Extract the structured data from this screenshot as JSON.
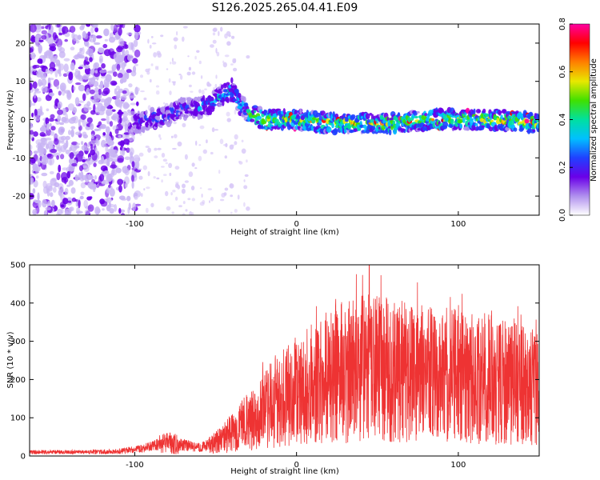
{
  "title": "S126.2025.265.04.41.E09",
  "chart_data": [
    {
      "type": "heatmap",
      "xlabel": "Height of straight line (km)",
      "ylabel": "Frequency (Hz)",
      "xlim": [
        -165,
        150
      ],
      "ylim": [
        -25,
        25
      ],
      "xticks": [
        -100,
        0,
        100
      ],
      "yticks": [
        -20,
        -10,
        0,
        10,
        20
      ],
      "colorbar": {
        "label": "Normalized spectral amplitude",
        "range": [
          0,
          0.8
        ],
        "ticks": [
          "0.0",
          "0.2",
          "0.4",
          "0.6",
          "0.8"
        ],
        "colors": [
          "#ffffff",
          "#b090ee",
          "#6a00e8",
          "#2040ff",
          "#00c0ff",
          "#00e0a0",
          "#40e000",
          "#e8e800",
          "#ff8000",
          "#ff0000",
          "#ff00a0"
        ]
      },
      "ridge_center_hz": {
        "x": [
          -100,
          -80,
          -70,
          -60,
          -50,
          -40,
          -35,
          -30,
          -20,
          -10,
          0,
          20,
          40,
          60,
          80,
          100,
          120,
          150
        ],
        "freq": [
          -1,
          1,
          3,
          3,
          5,
          8,
          4,
          2,
          0,
          0,
          0,
          -1,
          -1,
          -1,
          0,
          0,
          0,
          -1
        ]
      }
    },
    {
      "type": "line",
      "xlabel": "Height of straight line (km)",
      "ylabel": "SNR (10 * v/v)",
      "xlim": [
        -165,
        150
      ],
      "ylim": [
        0,
        500
      ],
      "xticks": [
        -100,
        0,
        100
      ],
      "yticks": [
        0,
        100,
        200,
        300,
        400,
        500
      ],
      "color": "#ee3333",
      "series": [
        {
          "name": "SNR",
          "x": [
            -165,
            -150,
            -130,
            -110,
            -95,
            -90,
            -80,
            -70,
            -60,
            -50,
            -40,
            -30,
            -20,
            -10,
            0,
            10,
            20,
            30,
            40,
            50,
            60,
            70,
            80,
            90,
            100,
            110,
            120,
            130,
            140,
            150
          ],
          "values": [
            10,
            10,
            10,
            12,
            20,
            25,
            35,
            28,
            22,
            35,
            60,
            90,
            120,
            150,
            170,
            190,
            210,
            220,
            230,
            230,
            220,
            220,
            215,
            210,
            210,
            200,
            200,
            190,
            185,
            180
          ]
        }
      ],
      "peak": {
        "x": 45,
        "value": 500
      }
    }
  ]
}
